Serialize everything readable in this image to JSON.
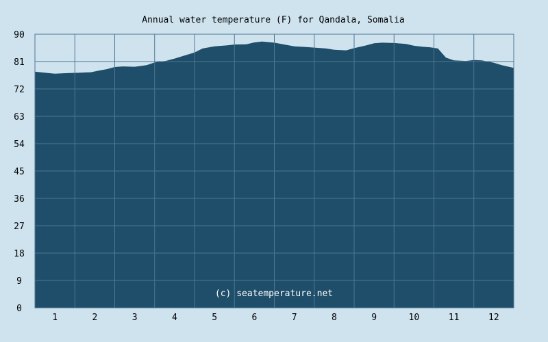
{
  "chart_data": {
    "type": "area",
    "title": "Annual water temperature (F) for Qandala, Somalia",
    "xlabel": "",
    "ylabel": "",
    "x_categories": [
      "1",
      "2",
      "3",
      "4",
      "5",
      "6",
      "7",
      "8",
      "9",
      "10",
      "11",
      "12"
    ],
    "y_ticks": [
      0,
      9,
      18,
      27,
      36,
      45,
      54,
      63,
      72,
      81,
      90
    ],
    "ylim": [
      0,
      90
    ],
    "x_range": [
      0.5,
      12.5
    ],
    "grid": true,
    "colors": {
      "fill": "#1f4e6a",
      "grid": "#4f7690",
      "background": "#cfe3ef"
    },
    "series": [
      {
        "x": [
          0.5,
          0.7,
          1.0,
          1.3,
          1.6,
          1.9,
          2.1,
          2.3,
          2.5,
          2.7,
          3.0,
          3.3,
          3.5,
          3.8,
          4.0,
          4.3,
          4.5,
          4.7,
          5.0,
          5.3,
          5.5,
          5.8,
          6.0,
          6.2,
          6.5,
          6.8,
          7.0,
          7.3,
          7.5,
          7.8,
          8.0,
          8.3,
          8.5,
          8.8,
          9.0,
          9.2,
          9.5,
          9.8,
          10.0,
          10.2,
          10.4,
          10.6,
          10.8,
          11.0,
          11.3,
          11.5,
          11.7,
          12.0,
          12.2,
          12.5
        ],
        "y": [
          77.7,
          77.4,
          77.0,
          77.2,
          77.3,
          77.5,
          78.0,
          78.5,
          79.2,
          79.4,
          79.3,
          79.8,
          80.7,
          81.3,
          82.0,
          83.2,
          84.0,
          85.3,
          86.0,
          86.3,
          86.6,
          86.7,
          87.3,
          87.6,
          87.2,
          86.5,
          86.0,
          85.8,
          85.6,
          85.3,
          84.9,
          84.7,
          85.4,
          86.3,
          87.0,
          87.2,
          87.1,
          86.8,
          86.2,
          85.9,
          85.7,
          85.3,
          82.3,
          81.4,
          81.2,
          81.5,
          81.4,
          80.6,
          79.8,
          78.9
        ]
      }
    ],
    "credit": "(c) seatemperature.net"
  }
}
